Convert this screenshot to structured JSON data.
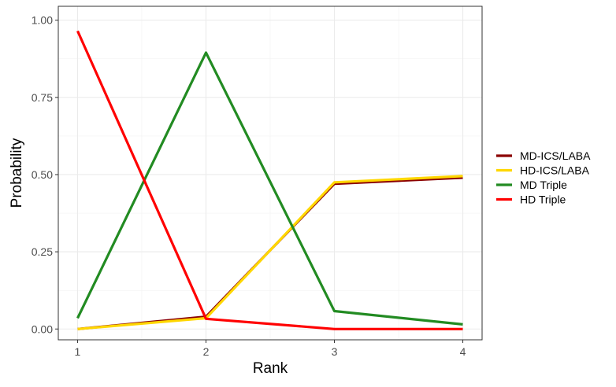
{
  "chart_data": {
    "type": "line",
    "title": "",
    "xlabel": "Rank",
    "ylabel": "Probability",
    "x": [
      1,
      2,
      3,
      4
    ],
    "xlim": [
      0.85,
      4.15
    ],
    "ylim": [
      -0.035,
      1.045
    ],
    "x_ticks": [
      1,
      2,
      3,
      4
    ],
    "y_ticks": [
      "0.00",
      "0.25",
      "0.50",
      "0.75",
      "1.00"
    ],
    "grid": true,
    "legend_position": "right",
    "series": [
      {
        "name": "MD-ICS/LABA",
        "color": "#8B0000",
        "values": [
          0.0,
          0.04,
          0.47,
          0.49
        ]
      },
      {
        "name": "HD-ICS/LABA",
        "color": "#FFD700",
        "values": [
          0.0,
          0.035,
          0.475,
          0.495
        ]
      },
      {
        "name": "MD Triple",
        "color": "#228B22",
        "values": [
          0.035,
          0.895,
          0.058,
          0.015
        ]
      },
      {
        "name": "HD Triple",
        "color": "#FF0000",
        "values": [
          0.965,
          0.033,
          0.0,
          0.0
        ]
      }
    ]
  }
}
